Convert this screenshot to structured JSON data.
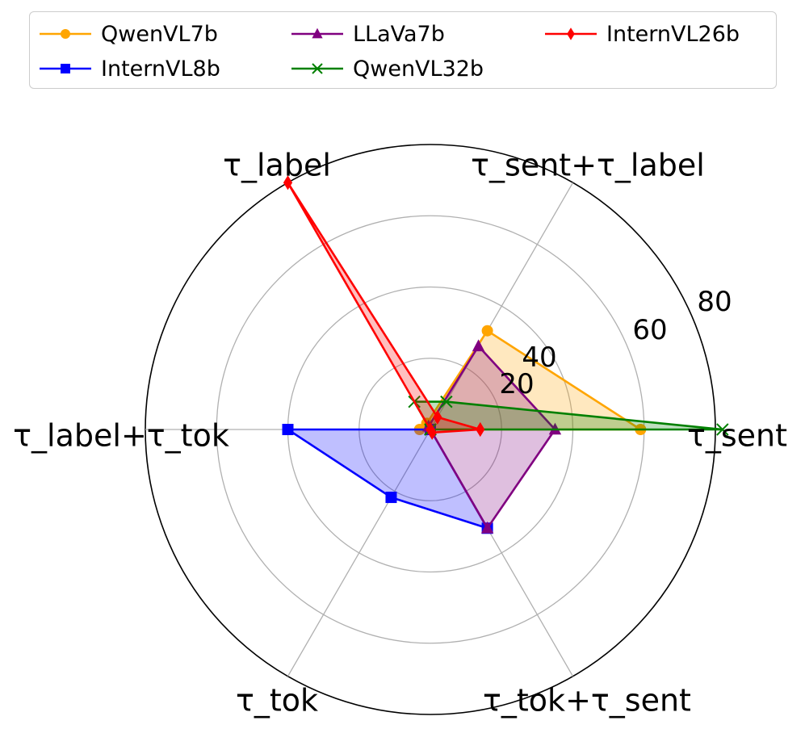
{
  "chart_data": {
    "type": "radar",
    "categories": [
      "τ_sent",
      "τ_sent+τ_label",
      "τ_label",
      "τ_label+τ_tok",
      "τ_tok",
      "τ_tok+τ_sent"
    ],
    "rmax": 80,
    "rticks": [
      20,
      40,
      60,
      80
    ],
    "rtick_labels": [
      "20",
      "40",
      "60",
      "80"
    ],
    "grid": true,
    "legend_position": "top",
    "series": [
      {
        "name": "QwenVL7b",
        "color": "#ffa500",
        "marker": "circle",
        "fill": true,
        "values": [
          59,
          32,
          2,
          3,
          0,
          0
        ]
      },
      {
        "name": "InternVL8b",
        "color": "#0000ff",
        "marker": "square",
        "fill": true,
        "values": [
          0,
          0,
          0,
          40,
          22,
          32
        ]
      },
      {
        "name": "LLaVa7b",
        "color": "#800080",
        "marker": "triangle",
        "fill": true,
        "values": [
          35,
          27,
          1,
          0,
          0,
          32
        ]
      },
      {
        "name": "QwenVL32b",
        "color": "#008000",
        "marker": "x",
        "fill": true,
        "values": [
          82,
          9,
          9,
          0,
          0,
          0
        ]
      },
      {
        "name": "InternVL26b",
        "color": "#ff0000",
        "marker": "diamond",
        "fill": true,
        "values": [
          14,
          4,
          80,
          0,
          0,
          1
        ]
      }
    ]
  }
}
